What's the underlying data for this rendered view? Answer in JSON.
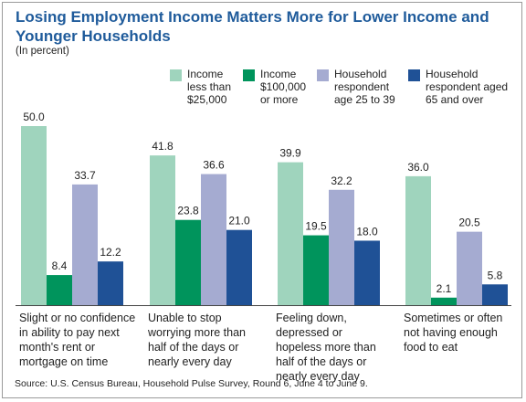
{
  "colors": {
    "title": "#1f5b9b",
    "series": [
      "#9fd4bd",
      "#00945c",
      "#a5abd1",
      "#1f5196"
    ]
  },
  "chart_data": {
    "type": "bar",
    "title": "Losing Employment Income Matters More for Lower Income and Younger Households",
    "subtitle": "(In percent)",
    "categories": [
      "Slight or no confidence in ability to pay next month's rent or mortgage on time",
      "Unable to stop worrying more than half of the days or nearly every day",
      "Feeling down, depressed or hopeless more than half of the days or nearly every day",
      "Sometimes or often not having enough food to eat"
    ],
    "category_lines": [
      [
        "Slight or no confidence",
        "in ability to pay next",
        "month's rent or",
        "mortgage on time"
      ],
      [
        "Unable to stop",
        "worrying more than",
        "half of the days or",
        "nearly every day"
      ],
      [
        "Feeling down,",
        "depressed or",
        "hopeless more than",
        "half of the days or",
        "nearly every day"
      ],
      [
        "Sometimes or often",
        "not having enough",
        "food to eat"
      ]
    ],
    "series": [
      {
        "name": "Income less than $25,000",
        "legend_lines": [
          "Income",
          "less than",
          "$25,000"
        ],
        "values": [
          50.0,
          41.8,
          39.9,
          36.0
        ]
      },
      {
        "name": "Income $100,000 or more",
        "legend_lines": [
          "Income",
          "$100,000",
          "or more"
        ],
        "values": [
          8.4,
          23.8,
          19.5,
          2.1
        ]
      },
      {
        "name": "Household respondent age 25 to 39",
        "legend_lines": [
          "Household",
          "respondent",
          "age 25 to 39"
        ],
        "values": [
          33.7,
          36.6,
          32.2,
          20.5
        ]
      },
      {
        "name": "Household respondent aged 65 and over",
        "legend_lines": [
          "Household",
          "respondent aged",
          "65 and over"
        ],
        "values": [
          12.2,
          21.0,
          18.0,
          5.8
        ]
      }
    ],
    "ylim": [
      0,
      50
    ],
    "grid": false,
    "legend_position": "top-right",
    "source": "Source: U.S. Census Bureau, Household Pulse Survey, Round 6, June 4 to June 9."
  }
}
